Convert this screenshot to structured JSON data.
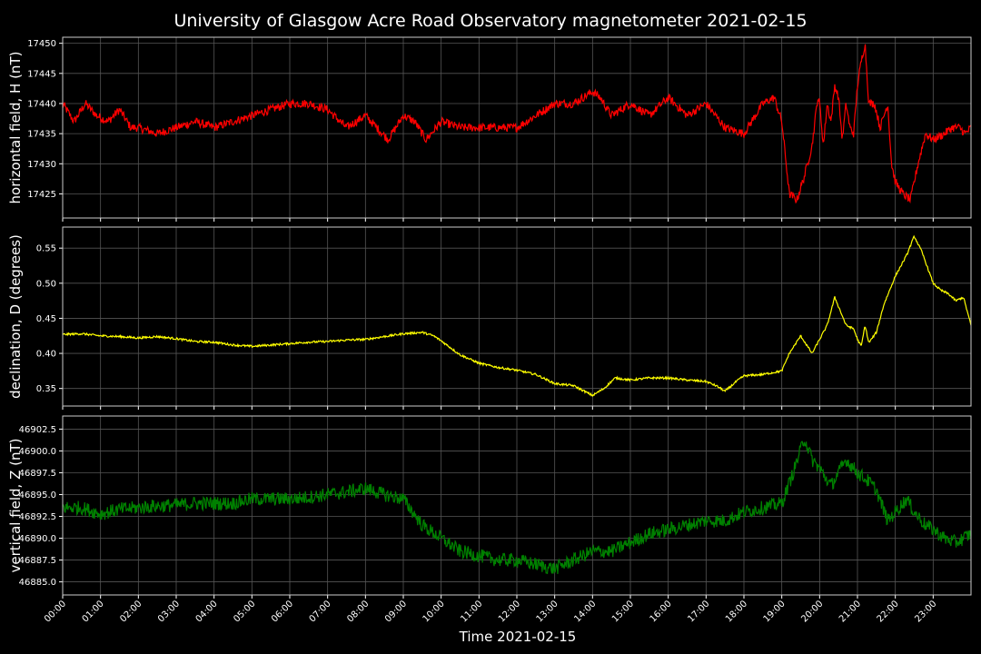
{
  "chart_data": {
    "type": "line",
    "title": "University of Glasgow Acre Road Observatory magnetometer 2021-02-15",
    "xlabel": "Time 2021-02-15",
    "x_ticks": [
      "00:00",
      "01:00",
      "02:00",
      "03:00",
      "04:00",
      "05:00",
      "06:00",
      "07:00",
      "08:00",
      "09:00",
      "10:00",
      "11:00",
      "12:00",
      "13:00",
      "14:00",
      "15:00",
      "16:00",
      "17:00",
      "18:00",
      "19:00",
      "20:00",
      "21:00",
      "22:00",
      "23:00"
    ],
    "x_range_hours": [
      0,
      24
    ],
    "grid": true,
    "panels": [
      {
        "name": "H",
        "ylabel": "horizontal field, H (nT)",
        "color": "#ff0000",
        "ylim": [
          17421,
          17451
        ],
        "y_ticks": [
          "17425",
          "17430",
          "17435",
          "17440",
          "17445",
          "17450"
        ],
        "y_tick_values": [
          17425,
          17430,
          17435,
          17440,
          17445,
          17450
        ],
        "noise": 0.7,
        "x": [
          0,
          0.3,
          0.6,
          0.9,
          1.2,
          1.5,
          1.8,
          2.0,
          2.5,
          3.0,
          3.5,
          4.0,
          4.5,
          5.0,
          5.5,
          6.0,
          6.5,
          7.0,
          7.5,
          8.0,
          8.3,
          8.6,
          9.0,
          9.3,
          9.6,
          10.0,
          10.5,
          11.0,
          11.5,
          12.0,
          12.5,
          13.0,
          13.5,
          14.0,
          14.2,
          14.5,
          15.0,
          15.5,
          16.0,
          16.5,
          17.0,
          17.5,
          18.0,
          18.5,
          18.8,
          19.0,
          19.2,
          19.4,
          19.6,
          19.8,
          19.95,
          20.0,
          20.1,
          20.2,
          20.3,
          20.4,
          20.5,
          20.6,
          20.7,
          20.8,
          20.9,
          21.0,
          21.1,
          21.2,
          21.3,
          21.45,
          21.6,
          21.8,
          21.9,
          22.0,
          22.2,
          22.4,
          22.6,
          22.8,
          23.0,
          23.3,
          23.5,
          23.7,
          23.85,
          24.0
        ],
        "values": [
          17440,
          17437,
          17440,
          17438,
          17437,
          17439,
          17436,
          17436,
          17435,
          17436,
          17437,
          17436,
          17437,
          17438,
          17439,
          17440,
          17440,
          17439,
          17436,
          17438,
          17436,
          17434,
          17438,
          17437,
          17434,
          17437,
          17436,
          17436,
          17436,
          17436,
          17438,
          17440,
          17440,
          17442,
          17441,
          17438,
          17440,
          17438,
          17441,
          17438,
          17440,
          17436,
          17435,
          17440,
          17441,
          17437,
          17425,
          17424,
          17428,
          17433,
          17441,
          17440,
          17433,
          17440,
          17437,
          17443,
          17441,
          17434,
          17440,
          17436,
          17435,
          17443,
          17447,
          17450,
          17440,
          17440,
          17436,
          17440,
          17430,
          17427,
          17425,
          17424,
          17430,
          17435,
          17434,
          17435,
          17436,
          17436,
          17435,
          17436
        ]
      },
      {
        "name": "D",
        "ylabel": "declination, D (degrees)",
        "color": "#ffff00",
        "ylim": [
          0.325,
          0.58
        ],
        "y_ticks": [
          "0.35",
          "0.40",
          "0.45",
          "0.50",
          "0.55"
        ],
        "y_tick_values": [
          0.35,
          0.4,
          0.45,
          0.5,
          0.55
        ],
        "noise": 0.0015,
        "x": [
          0,
          0.5,
          1.0,
          1.5,
          2.0,
          2.5,
          3.0,
          3.5,
          4.0,
          4.5,
          5.0,
          5.5,
          6.0,
          6.5,
          7.0,
          7.5,
          8.0,
          8.5,
          9.0,
          9.5,
          9.8,
          10.0,
          10.5,
          11.0,
          11.5,
          12.0,
          12.5,
          13.0,
          13.5,
          14.0,
          14.3,
          14.6,
          15.0,
          15.5,
          16.0,
          16.5,
          17.0,
          17.3,
          17.5,
          17.8,
          18.0,
          18.5,
          19.0,
          19.2,
          19.5,
          19.8,
          20.0,
          20.2,
          20.4,
          20.55,
          20.7,
          20.9,
          21.0,
          21.1,
          21.2,
          21.3,
          21.5,
          21.7,
          22.0,
          22.3,
          22.5,
          22.7,
          23.0,
          23.2,
          23.4,
          23.6,
          23.8,
          24.0
        ],
        "values": [
          0.427,
          0.428,
          0.425,
          0.424,
          0.422,
          0.424,
          0.421,
          0.417,
          0.416,
          0.412,
          0.41,
          0.412,
          0.414,
          0.416,
          0.417,
          0.419,
          0.42,
          0.424,
          0.428,
          0.43,
          0.425,
          0.418,
          0.398,
          0.386,
          0.38,
          0.376,
          0.37,
          0.357,
          0.354,
          0.34,
          0.35,
          0.365,
          0.362,
          0.365,
          0.365,
          0.362,
          0.36,
          0.353,
          0.346,
          0.36,
          0.368,
          0.37,
          0.375,
          0.4,
          0.425,
          0.4,
          0.42,
          0.44,
          0.48,
          0.46,
          0.44,
          0.435,
          0.42,
          0.41,
          0.44,
          0.415,
          0.43,
          0.47,
          0.51,
          0.54,
          0.567,
          0.545,
          0.5,
          0.49,
          0.485,
          0.475,
          0.48,
          0.44
        ]
      },
      {
        "name": "Z",
        "ylabel": "vertical field, Z (nT)",
        "color": "#008000",
        "ylim": [
          46883.5,
          46904
        ],
        "y_ticks": [
          "46885.0",
          "46887.5",
          "46890.0",
          "46892.5",
          "46895.0",
          "46897.5",
          "46900.0",
          "46902.5"
        ],
        "y_tick_values": [
          46885.0,
          46887.5,
          46890.0,
          46892.5,
          46895.0,
          46897.5,
          46900.0,
          46902.5
        ],
        "noise": 0.8,
        "x": [
          0,
          0.5,
          1.0,
          1.5,
          2.0,
          2.5,
          3.0,
          3.5,
          4.0,
          4.5,
          5.0,
          5.5,
          6.0,
          6.5,
          7.0,
          7.5,
          8.0,
          8.5,
          9.0,
          9.5,
          10.0,
          10.5,
          11.0,
          11.5,
          12.0,
          12.5,
          13.0,
          13.5,
          14.0,
          14.5,
          15.0,
          15.5,
          16.0,
          16.5,
          17.0,
          17.5,
          18.0,
          18.5,
          19.0,
          19.3,
          19.6,
          19.8,
          20.0,
          20.3,
          20.5,
          20.7,
          21.0,
          21.3,
          21.5,
          21.8,
          22.0,
          22.3,
          22.5,
          22.8,
          23.0,
          23.3,
          23.6,
          24.0
        ],
        "values": [
          46893.5,
          46893.5,
          46892.8,
          46893.3,
          46893.5,
          46893.7,
          46893.8,
          46894.0,
          46894.0,
          46894.0,
          46894.5,
          46894.5,
          46894.5,
          46894.7,
          46895.0,
          46895.3,
          46895.7,
          46895.0,
          46894.5,
          46891.5,
          46890.0,
          46888.5,
          46888.0,
          46887.5,
          46887.5,
          46887.0,
          46886.5,
          46887.5,
          46888.5,
          46888.5,
          46889.5,
          46890.5,
          46891.0,
          46891.5,
          46892.0,
          46892.0,
          46893.0,
          46893.5,
          46894.0,
          46897.5,
          46901.5,
          46899.0,
          46898.0,
          46896.0,
          46897.5,
          46899.0,
          46897.5,
          46896.5,
          46895.5,
          46892.0,
          46893.0,
          46894.5,
          46893.0,
          46891.5,
          46891.0,
          46890.0,
          46889.5,
          46890.5
        ]
      }
    ]
  }
}
